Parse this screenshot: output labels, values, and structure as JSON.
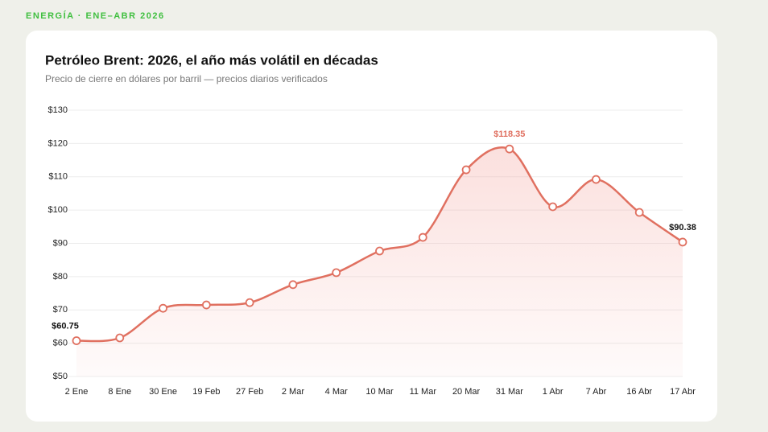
{
  "kicker": "ENERGÍA · ENE–ABR 2026",
  "chart_data": {
    "type": "line",
    "title": "Petróleo Brent: 2026, el año más volátil en décadas",
    "subtitle": "Precio de cierre en dólares por barril — precios diarios verificados",
    "categories": [
      "2 Ene",
      "8 Ene",
      "30 Ene",
      "19 Feb",
      "27 Feb",
      "2 Mar",
      "4 Mar",
      "10 Mar",
      "11 Mar",
      "20 Mar",
      "31 Mar",
      "1 Abr",
      "7 Abr",
      "16 Abr",
      "17 Abr"
    ],
    "series": [
      {
        "name": "Brent",
        "color": "#e07060",
        "values": [
          60.75,
          61.6,
          70.5,
          71.5,
          72.2,
          77.6,
          81.2,
          87.7,
          91.8,
          112.1,
          118.35,
          101,
          109.2,
          99.3,
          90.38
        ],
        "value_labels": [
          "$60.75",
          null,
          null,
          null,
          null,
          null,
          null,
          null,
          null,
          null,
          "$118.35",
          null,
          null,
          null,
          "$90.38"
        ]
      }
    ],
    "ylim": [
      50,
      130
    ],
    "yticks": [
      {
        "value": 50,
        "label": "$50"
      },
      {
        "value": 60,
        "label": "$60"
      },
      {
        "value": 70,
        "label": "$70"
      },
      {
        "value": 80,
        "label": "$80"
      },
      {
        "value": 90,
        "label": "$90"
      },
      {
        "value": 100,
        "label": "$100"
      },
      {
        "value": 110,
        "label": "$110"
      },
      {
        "value": 120,
        "label": "$120"
      },
      {
        "value": 130,
        "label": "$130"
      }
    ],
    "grid": true
  }
}
